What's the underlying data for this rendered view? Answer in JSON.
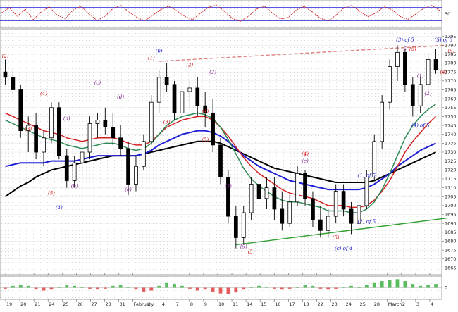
{
  "colors": {
    "background": "#ffffff",
    "grid": "#dcdcdc",
    "price_bar": "#000000",
    "ma_black": "#000000",
    "ma_blue": "#1f1fd6",
    "ma_red": "#d42020",
    "ma_green": "#2e8b57",
    "ma_thin_red": "#e05050",
    "ma_thin_blue": "#6a6ae8",
    "trendline_support": "#2fa02f",
    "trendline_resistance": "#e08080",
    "wave_red": "#d01010",
    "wave_blue": "#1010c0",
    "wave_purple": "#7a1f8a",
    "osc_hist_pos": "#3cb043",
    "osc_hist_neg": "#e04040"
  },
  "chart_data": [
    {
      "type": "line",
      "panel": "oscillator-top",
      "y_tick_labels": [
        "50"
      ],
      "ylim": [
        0,
        100
      ],
      "levels": [
        20,
        80
      ],
      "series": [
        {
          "values": [
            55,
            78,
            40,
            72,
            25,
            60,
            82,
            45,
            30,
            68,
            85,
            50,
            22,
            40,
            75,
            88,
            60,
            35,
            20,
            45,
            70,
            85,
            65,
            40,
            25,
            55,
            80,
            90,
            62,
            30,
            18,
            40,
            72,
            86,
            55,
            28,
            35,
            68,
            84,
            60,
            32,
            20,
            45,
            78,
            88,
            62,
            38,
            55,
            82,
            70,
            40,
            26,
            50,
            76,
            88,
            66
          ]
        }
      ]
    },
    {
      "type": "line",
      "panel": "price",
      "y_tick_labels": [
        "1665",
        "1670",
        "1675",
        "1680",
        "1685",
        "1690",
        "1695",
        "1700",
        "1705",
        "1710",
        "1715",
        "1720",
        "1725",
        "1730",
        "1735",
        "1740",
        "1745",
        "1750",
        "1755",
        "1760",
        "1765",
        "1770",
        "1775",
        "1780",
        "1785",
        "1790",
        "1795"
      ],
      "ylim": [
        1662,
        1798
      ],
      "x_tick_labels": [
        " 19",
        "20",
        "21",
        "24",
        "25",
        "26",
        "27",
        "28",
        "31",
        "February",
        "3",
        "4",
        "7",
        "8",
        "9",
        "10",
        "11",
        "14",
        "15",
        "16",
        "17",
        "18",
        "22",
        "23",
        "24",
        "25",
        "28",
        "March",
        "2",
        "3",
        "4"
      ],
      "candles": [
        {
          "o": 1775,
          "h": 1782,
          "l": 1768,
          "c": 1772
        },
        {
          "o": 1772,
          "h": 1776,
          "l": 1762,
          "c": 1765
        },
        {
          "o": 1765,
          "h": 1768,
          "l": 1738,
          "c": 1742
        },
        {
          "o": 1742,
          "h": 1750,
          "l": 1730,
          "c": 1745
        },
        {
          "o": 1745,
          "h": 1752,
          "l": 1726,
          "c": 1730
        },
        {
          "o": 1730,
          "h": 1742,
          "l": 1722,
          "c": 1738
        },
        {
          "o": 1738,
          "h": 1758,
          "l": 1735,
          "c": 1755
        },
        {
          "o": 1755,
          "h": 1758,
          "l": 1726,
          "c": 1728
        },
        {
          "o": 1728,
          "h": 1732,
          "l": 1710,
          "c": 1714
        },
        {
          "o": 1714,
          "h": 1728,
          "l": 1710,
          "c": 1724
        },
        {
          "o": 1724,
          "h": 1732,
          "l": 1718,
          "c": 1730
        },
        {
          "o": 1730,
          "h": 1750,
          "l": 1726,
          "c": 1746
        },
        {
          "o": 1746,
          "h": 1752,
          "l": 1738,
          "c": 1748
        },
        {
          "o": 1748,
          "h": 1755,
          "l": 1740,
          "c": 1744
        },
        {
          "o": 1744,
          "h": 1752,
          "l": 1734,
          "c": 1738
        },
        {
          "o": 1738,
          "h": 1745,
          "l": 1728,
          "c": 1732
        },
        {
          "o": 1732,
          "h": 1736,
          "l": 1706,
          "c": 1712
        },
        {
          "o": 1712,
          "h": 1728,
          "l": 1708,
          "c": 1722
        },
        {
          "o": 1722,
          "h": 1740,
          "l": 1720,
          "c": 1736
        },
        {
          "o": 1736,
          "h": 1762,
          "l": 1734,
          "c": 1758
        },
        {
          "o": 1758,
          "h": 1776,
          "l": 1752,
          "c": 1772
        },
        {
          "o": 1772,
          "h": 1780,
          "l": 1764,
          "c": 1768
        },
        {
          "o": 1768,
          "h": 1770,
          "l": 1748,
          "c": 1752
        },
        {
          "o": 1752,
          "h": 1768,
          "l": 1748,
          "c": 1764
        },
        {
          "o": 1764,
          "h": 1770,
          "l": 1755,
          "c": 1766
        },
        {
          "o": 1766,
          "h": 1772,
          "l": 1750,
          "c": 1756
        },
        {
          "o": 1756,
          "h": 1764,
          "l": 1744,
          "c": 1752
        },
        {
          "o": 1752,
          "h": 1760,
          "l": 1730,
          "c": 1734
        },
        {
          "o": 1734,
          "h": 1738,
          "l": 1712,
          "c": 1716
        },
        {
          "o": 1716,
          "h": 1720,
          "l": 1690,
          "c": 1694
        },
        {
          "o": 1694,
          "h": 1700,
          "l": 1676,
          "c": 1682
        },
        {
          "o": 1682,
          "h": 1700,
          "l": 1678,
          "c": 1696
        },
        {
          "o": 1696,
          "h": 1716,
          "l": 1692,
          "c": 1712
        },
        {
          "o": 1712,
          "h": 1718,
          "l": 1700,
          "c": 1704
        },
        {
          "o": 1704,
          "h": 1716,
          "l": 1698,
          "c": 1710
        },
        {
          "o": 1710,
          "h": 1716,
          "l": 1692,
          "c": 1698
        },
        {
          "o": 1698,
          "h": 1708,
          "l": 1686,
          "c": 1690
        },
        {
          "o": 1690,
          "h": 1706,
          "l": 1688,
          "c": 1702
        },
        {
          "o": 1702,
          "h": 1722,
          "l": 1700,
          "c": 1718
        },
        {
          "o": 1718,
          "h": 1720,
          "l": 1700,
          "c": 1704
        },
        {
          "o": 1704,
          "h": 1708,
          "l": 1688,
          "c": 1692
        },
        {
          "o": 1692,
          "h": 1700,
          "l": 1682,
          "c": 1686
        },
        {
          "o": 1686,
          "h": 1698,
          "l": 1682,
          "c": 1694
        },
        {
          "o": 1694,
          "h": 1712,
          "l": 1690,
          "c": 1708
        },
        {
          "o": 1708,
          "h": 1712,
          "l": 1694,
          "c": 1698
        },
        {
          "o": 1698,
          "h": 1702,
          "l": 1684,
          "c": 1690
        },
        {
          "o": 1690,
          "h": 1704,
          "l": 1686,
          "c": 1700
        },
        {
          "o": 1700,
          "h": 1720,
          "l": 1698,
          "c": 1716
        },
        {
          "o": 1716,
          "h": 1740,
          "l": 1714,
          "c": 1736
        },
        {
          "o": 1736,
          "h": 1762,
          "l": 1732,
          "c": 1758
        },
        {
          "o": 1758,
          "h": 1782,
          "l": 1754,
          "c": 1778
        },
        {
          "o": 1778,
          "h": 1790,
          "l": 1770,
          "c": 1786
        },
        {
          "o": 1786,
          "h": 1788,
          "l": 1764,
          "c": 1768
        },
        {
          "o": 1768,
          "h": 1772,
          "l": 1750,
          "c": 1756
        },
        {
          "o": 1756,
          "h": 1772,
          "l": 1752,
          "c": 1768
        },
        {
          "o": 1768,
          "h": 1786,
          "l": 1764,
          "c": 1782
        },
        {
          "o": 1782,
          "h": 1788,
          "l": 1774,
          "c": 1776
        }
      ],
      "moving_averages": [
        {
          "color_key": "ma_black",
          "values": [
            1705,
            1708,
            1711,
            1713,
            1716,
            1718,
            1720,
            1721,
            1722,
            1723,
            1724,
            1725,
            1726,
            1727,
            1728,
            1728,
            1728,
            1728,
            1729,
            1730,
            1731,
            1732,
            1733,
            1734,
            1735,
            1736,
            1736,
            1736,
            1735,
            1733,
            1731,
            1729,
            1727,
            1725,
            1723,
            1721,
            1720,
            1719,
            1718,
            1717,
            1716,
            1715,
            1714,
            1713,
            1713,
            1713,
            1713,
            1713,
            1714,
            1716,
            1718,
            1720,
            1722,
            1724,
            1726,
            1728,
            1730
          ]
        },
        {
          "color_key": "ma_blue",
          "values": [
            1722,
            1723,
            1724,
            1724,
            1724,
            1724,
            1725,
            1725,
            1725,
            1725,
            1726,
            1727,
            1728,
            1728,
            1728,
            1728,
            1728,
            1728,
            1729,
            1731,
            1734,
            1736,
            1738,
            1740,
            1741,
            1742,
            1742,
            1741,
            1739,
            1736,
            1732,
            1728,
            1725,
            1722,
            1720,
            1718,
            1716,
            1714,
            1713,
            1712,
            1711,
            1710,
            1709,
            1709,
            1709,
            1709,
            1709,
            1710,
            1712,
            1715,
            1718,
            1722,
            1725,
            1728,
            1731,
            1733,
            1735
          ]
        },
        {
          "color_key": "ma_red",
          "values": [
            1752,
            1750,
            1748,
            1746,
            1744,
            1742,
            1741,
            1740,
            1738,
            1737,
            1736,
            1737,
            1738,
            1738,
            1738,
            1737,
            1735,
            1734,
            1734,
            1736,
            1740,
            1744,
            1746,
            1748,
            1749,
            1750,
            1750,
            1748,
            1744,
            1739,
            1733,
            1727,
            1722,
            1718,
            1715,
            1712,
            1709,
            1707,
            1706,
            1705,
            1704,
            1702,
            1700,
            1700,
            1700,
            1699,
            1699,
            1700,
            1703,
            1708,
            1714,
            1722,
            1730,
            1736,
            1741,
            1746,
            1750
          ]
        },
        {
          "color_key": "ma_green",
          "values": [
            1748,
            1746,
            1744,
            1742,
            1740,
            1738,
            1737,
            1736,
            1734,
            1733,
            1732,
            1733,
            1734,
            1735,
            1735,
            1734,
            1732,
            1731,
            1732,
            1735,
            1740,
            1745,
            1748,
            1750,
            1751,
            1752,
            1751,
            1749,
            1744,
            1737,
            1729,
            1721,
            1715,
            1711,
            1708,
            1705,
            1703,
            1702,
            1702,
            1701,
            1700,
            1699,
            1697,
            1697,
            1697,
            1696,
            1696,
            1698,
            1702,
            1709,
            1718,
            1728,
            1738,
            1745,
            1750,
            1754,
            1757
          ]
        }
      ],
      "support_line": {
        "x": [
          30,
          57
        ],
        "y": [
          1678,
          1693
        ]
      },
      "resistance_line": {
        "x": [
          20,
          57
        ],
        "y": [
          1781,
          1790
        ]
      },
      "wave_labels": [
        {
          "text": "(2)",
          "x": 0,
          "y": 1783,
          "color_key": "wave_red"
        },
        {
          "text": "(3)",
          "x": 3,
          "y": 1742,
          "color_key": "wave_red"
        },
        {
          "text": "(4)",
          "x": 5,
          "y": 1762,
          "color_key": "wave_red"
        },
        {
          "text": "(5)",
          "x": 6,
          "y": 1706,
          "color_key": "wave_red"
        },
        {
          "text": "(a)",
          "x": 8,
          "y": 1748,
          "color_key": "wave_purple"
        },
        {
          "text": "(b)",
          "x": 9,
          "y": 1710,
          "color_key": "wave_purple"
        },
        {
          "text": "(4)",
          "x": 7,
          "y": 1698,
          "color_key": "wave_blue"
        },
        {
          "text": "(c)",
          "x": 12,
          "y": 1768,
          "color_key": "wave_purple"
        },
        {
          "text": "(d)",
          "x": 15,
          "y": 1760,
          "color_key": "wave_purple"
        },
        {
          "text": "(e)",
          "x": 16,
          "y": 1708,
          "color_key": "wave_purple"
        },
        {
          "text": "(b)",
          "x": 20,
          "y": 1786,
          "color_key": "wave_blue"
        },
        {
          "text": "(1)",
          "x": 19,
          "y": 1782,
          "color_key": "wave_red"
        },
        {
          "text": "(2)",
          "x": 24,
          "y": 1778,
          "color_key": "wave_red"
        },
        {
          "text": "(3)",
          "x": 21,
          "y": 1746,
          "color_key": "wave_red"
        },
        {
          "text": "(4)",
          "x": 26,
          "y": 1752,
          "color_key": "wave_red"
        },
        {
          "text": "(5)",
          "x": 26,
          "y": 1736,
          "color_key": "wave_red"
        },
        {
          "text": "(2)",
          "x": 27,
          "y": 1774,
          "color_key": "wave_purple"
        },
        {
          "text": "(3)",
          "x": 29,
          "y": 1710,
          "color_key": "wave_purple"
        },
        {
          "text": "(5)",
          "x": 31,
          "y": 1676,
          "color_key": "wave_purple"
        },
        {
          "text": "(5)",
          "x": 32,
          "y": 1673,
          "color_key": "wave_red"
        },
        {
          "text": "(4)",
          "x": 39,
          "y": 1728,
          "color_key": "wave_red"
        },
        {
          "text": "(c)",
          "x": 39,
          "y": 1724,
          "color_key": "wave_purple"
        },
        {
          "text": "(5)",
          "x": 43,
          "y": 1681,
          "color_key": "wave_red"
        },
        {
          "text": "(c) of 4",
          "x": 44,
          "y": 1675,
          "color_key": "wave_blue"
        },
        {
          "text": "(1) of 5",
          "x": 47,
          "y": 1716,
          "color_key": "wave_blue"
        },
        {
          "text": "(2) of 5",
          "x": 47,
          "y": 1690,
          "color_key": "wave_blue"
        },
        {
          "text": "(3) of 5",
          "x": 52,
          "y": 1792,
          "color_key": "wave_blue"
        },
        {
          "text": "(5) of 5",
          "x": 57,
          "y": 1792,
          "color_key": "wave_blue"
        },
        {
          "text": "(4) of 5",
          "x": 54,
          "y": 1744,
          "color_key": "wave_blue"
        },
        {
          "text": "5",
          "x": 52,
          "y": 1787,
          "color_key": "wave_purple"
        },
        {
          "text": "(5)",
          "x": 53,
          "y": 1787,
          "color_key": "wave_red"
        },
        {
          "text": "(1)",
          "x": 54,
          "y": 1772,
          "color_key": "wave_purple"
        },
        {
          "text": "(2)",
          "x": 55,
          "y": 1762,
          "color_key": "wave_purple"
        },
        {
          "text": "(4)",
          "x": 57,
          "y": 1774,
          "color_key": "wave_red"
        },
        {
          "text": "(5)",
          "x": 58,
          "y": 1786,
          "color_key": "wave_red"
        }
      ]
    },
    {
      "type": "bar",
      "panel": "oscillator-bottom",
      "y_tick_labels": [
        "0"
      ],
      "ylim": [
        -10,
        10
      ],
      "values": [
        -1,
        2,
        3,
        2,
        -2,
        -3,
        -2,
        1,
        3,
        2,
        1,
        -1,
        -2,
        -1,
        2,
        3,
        1,
        -2,
        -4,
        -3,
        2,
        5,
        4,
        2,
        -1,
        -3,
        -2,
        -4,
        -6,
        -7,
        -5,
        -2,
        1,
        2,
        1,
        -1,
        -2,
        -1,
        1,
        3,
        2,
        -1,
        -2,
        -1,
        1,
        2,
        1,
        3,
        5,
        7,
        8,
        9,
        7,
        4,
        2,
        3,
        4
      ]
    }
  ]
}
